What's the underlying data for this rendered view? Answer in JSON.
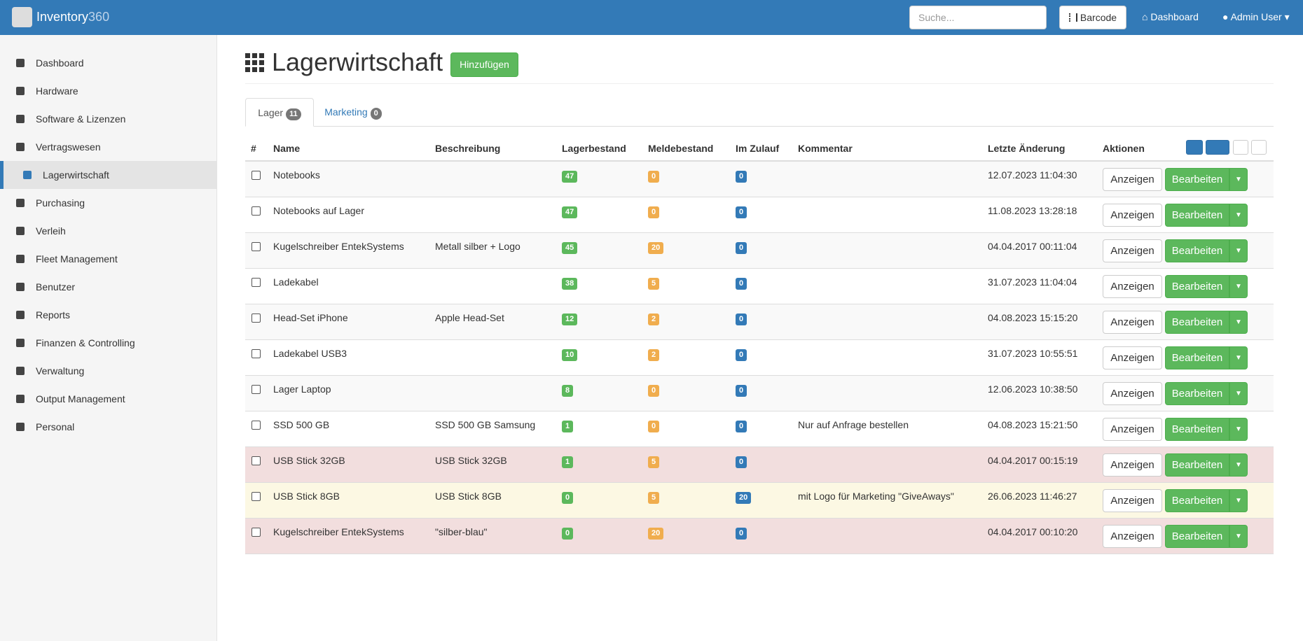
{
  "navbar": {
    "brand": "Inventory",
    "brand_suffix": "360",
    "search_placeholder": "Suche...",
    "barcode": "Barcode",
    "dashboard": "Dashboard",
    "user": "Admin User"
  },
  "sidebar": {
    "items": [
      "Dashboard",
      "Hardware",
      "Software & Lizenzen",
      "Vertragswesen",
      "Lagerwirtschaft",
      "Purchasing",
      "Verleih",
      "Fleet Management",
      "Benutzer",
      "Reports",
      "Finanzen & Controlling",
      "Verwaltung",
      "Output Management",
      "Personal"
    ],
    "active": 4
  },
  "header": {
    "title": "Lagerwirtschaft",
    "add_button": "Hinzufügen"
  },
  "tabs": [
    {
      "label": "Lager",
      "count": 11
    },
    {
      "label": "Marketing",
      "count": 0
    }
  ],
  "table": {
    "columns": [
      "#",
      "Name",
      "Beschreibung",
      "Lagerbestand",
      "Meldebestand",
      "Im Zulauf",
      "Kommentar",
      "Letzte Änderung",
      "Aktionen"
    ],
    "actions": {
      "view": "Anzeigen",
      "edit": "Bearbeiten"
    },
    "rows": [
      {
        "name": "Notebooks",
        "description": "",
        "stock": 47,
        "min_stock": 0,
        "incoming": 0,
        "comment": "",
        "modified": "12.07.2023 11:04:30"
      },
      {
        "name": "Notebooks auf Lager",
        "description": "",
        "stock": 47,
        "min_stock": 0,
        "incoming": 0,
        "comment": "",
        "modified": "11.08.2023 13:28:18"
      },
      {
        "name": "Kugelschreiber EntekSystems",
        "description": "Metall silber + Logo",
        "stock": 45,
        "min_stock": 20,
        "incoming": 0,
        "comment": "",
        "modified": "04.04.2017 00:11:04"
      },
      {
        "name": "Ladekabel",
        "description": "",
        "stock": 38,
        "min_stock": 5,
        "incoming": 0,
        "comment": "",
        "modified": "31.07.2023 11:04:04"
      },
      {
        "name": "Head-Set iPhone",
        "description": "Apple Head-Set",
        "stock": 12,
        "min_stock": 2,
        "incoming": 0,
        "comment": "",
        "modified": "04.08.2023 15:15:20"
      },
      {
        "name": "Ladekabel USB3",
        "description": "",
        "stock": 10,
        "min_stock": 2,
        "incoming": 0,
        "comment": "",
        "modified": "31.07.2023 10:55:51"
      },
      {
        "name": "Lager Laptop",
        "description": "",
        "stock": 8,
        "min_stock": 0,
        "incoming": 0,
        "comment": "",
        "modified": "12.06.2023 10:38:50"
      },
      {
        "name": "SSD 500 GB",
        "description": "SSD 500 GB Samsung",
        "stock": 1,
        "min_stock": 0,
        "incoming": 0,
        "comment": "Nur auf Anfrage bestellen",
        "modified": "04.08.2023 15:21:50"
      },
      {
        "name": "USB Stick 32GB",
        "description": "USB Stick 32GB",
        "stock": 1,
        "min_stock": 5,
        "incoming": 0,
        "comment": "",
        "modified": "04.04.2017 00:15:19",
        "status": "danger"
      },
      {
        "name": "USB Stick 8GB",
        "description": "USB Stick 8GB",
        "stock": 0,
        "min_stock": 5,
        "incoming": 20,
        "comment": "mit Logo für Marketing \"GiveAways\"",
        "modified": "26.06.2023 11:46:27",
        "status": "warning"
      },
      {
        "name": "Kugelschreiber EntekSystems",
        "description": "\"silber-blau\"",
        "stock": 0,
        "min_stock": 20,
        "incoming": 0,
        "comment": "",
        "modified": "04.04.2017 00:10:20",
        "status": "danger"
      }
    ]
  }
}
